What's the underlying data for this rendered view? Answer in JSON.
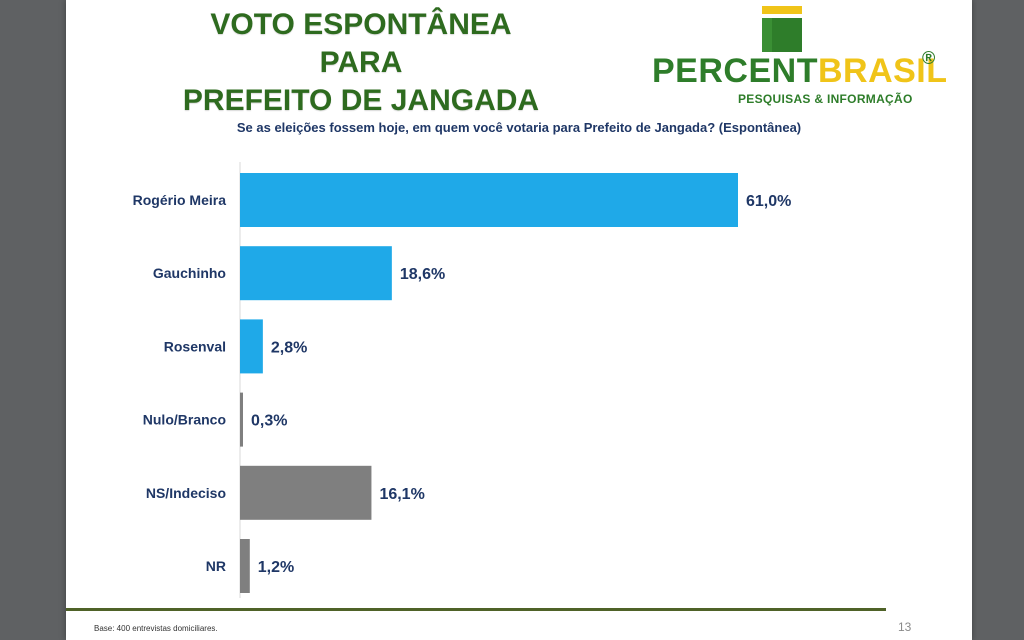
{
  "slide": {
    "title_line1": "VOTO ESPONTÂNEA PARA",
    "title_line2": "PREFEITO DE JANGADA",
    "logo": {
      "part1": "PERCENT",
      "part2": "BRASIL",
      "registered": "®",
      "tagline": "PESQUISAS & INFORMAÇÃO"
    },
    "base_note": "Base: 400 entrevistas domiciliares.",
    "page_number": "13"
  },
  "chart_data": {
    "type": "bar",
    "orientation": "horizontal",
    "title": "Se as eleições fossem hoje, em quem você votaria para Prefeito de Jangada? (Espontânea)",
    "categories": [
      "Rogério Meira",
      "Gauchinho",
      "Rosenval",
      "Nulo/Branco",
      "NS/Indeciso",
      "NR"
    ],
    "values": [
      61.0,
      18.6,
      2.8,
      0.3,
      16.1,
      1.2
    ],
    "labels": [
      "61,0%",
      "18,6%",
      "2,8%",
      "0,3%",
      "16,1%",
      "1,2%"
    ],
    "colors": [
      "#1fa9e8",
      "#1fa9e8",
      "#1fa9e8",
      "#7f7f7f",
      "#7f7f7f",
      "#7f7f7f"
    ],
    "xlim": [
      0,
      61
    ],
    "grid": false,
    "legend": "none"
  }
}
